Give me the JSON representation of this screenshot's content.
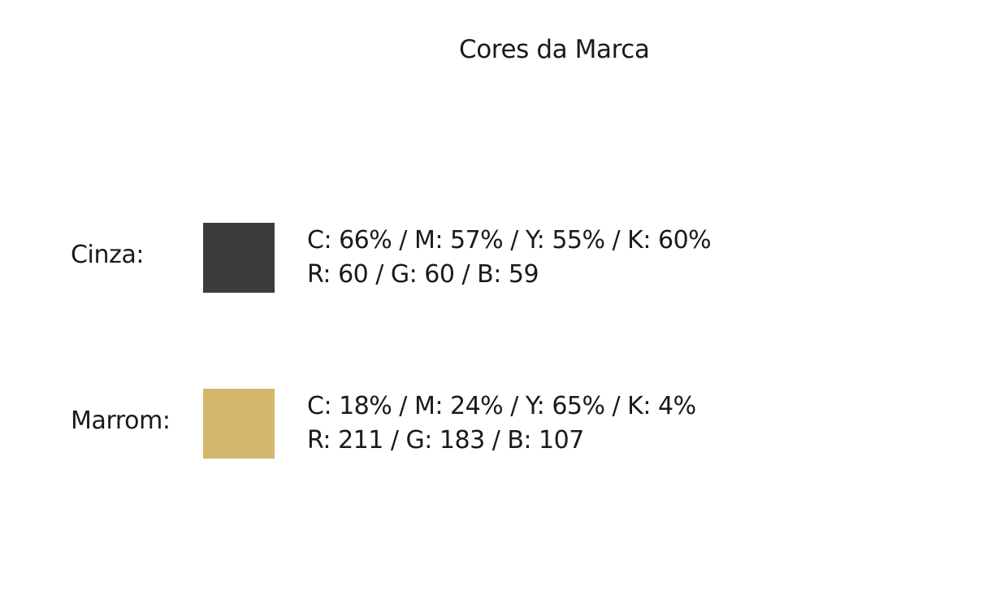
{
  "title": "Cores da Marca",
  "colors": [
    {
      "name": "Cinza:",
      "swatch_hex": "#3c3c3b",
      "cmyk": "C: 66% / M: 57% / Y: 55% / K: 60%",
      "rgb": "R: 60 / G: 60 / B: 59"
    },
    {
      "name": "Marrom:",
      "swatch_hex": "#d3b76b",
      "cmyk": "C: 18% / M: 24% / Y: 65% / K: 4%",
      "rgb": "R: 211 / G: 183 / B: 107"
    }
  ]
}
